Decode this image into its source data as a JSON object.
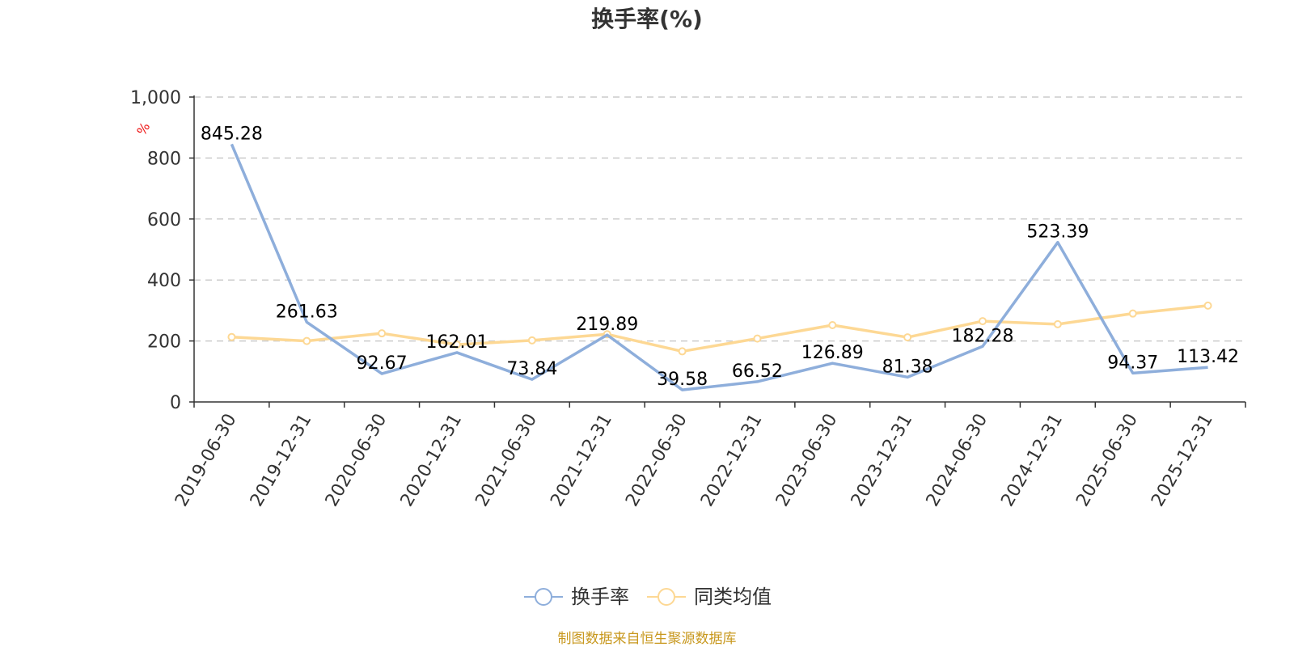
{
  "chart_data": {
    "type": "line",
    "title": "换手率(%)",
    "ylabel": "%",
    "xlabel": "",
    "ylim": [
      0,
      1000
    ],
    "yticks": [
      0,
      200,
      400,
      600,
      800,
      1000
    ],
    "ytick_labels": [
      "0",
      "200",
      "400",
      "600",
      "800",
      "1,000"
    ],
    "categories": [
      "2019-06-30",
      "2019-12-31",
      "2020-06-30",
      "2020-12-31",
      "2021-06-30",
      "2021-12-31",
      "2022-06-30",
      "2022-12-31",
      "2023-06-30",
      "2023-12-31",
      "2024-06-30",
      "2024-12-31",
      "2025-06-30",
      "2025-12-31"
    ],
    "series": [
      {
        "name": "换手率",
        "color": "#8eaedb",
        "show_labels": true,
        "values": [
          845.28,
          261.63,
          92.67,
          162.01,
          73.84,
          219.89,
          39.58,
          66.52,
          126.89,
          81.38,
          182.28,
          523.39,
          94.37,
          113.42
        ],
        "labels": [
          "845.28",
          "261.63",
          "92.67",
          "162.01",
          "73.84",
          "219.89",
          "39.58",
          "66.52",
          "126.89",
          "81.38",
          "182.28",
          "523.39",
          "94.37",
          "113.42"
        ]
      },
      {
        "name": "同类均值",
        "color": "#fdd894",
        "show_labels": false,
        "values": [
          213,
          200,
          225,
          188,
          202,
          222,
          166,
          208,
          252,
          212,
          265,
          255,
          290,
          316
        ]
      }
    ],
    "grid": true,
    "legend": "bottom-center",
    "source": "制图数据来自恒生聚源数据库"
  },
  "colors": {
    "axis": "#333333",
    "grid": "#cccccc",
    "unit": "#ee1111",
    "source": "#c8981e"
  }
}
